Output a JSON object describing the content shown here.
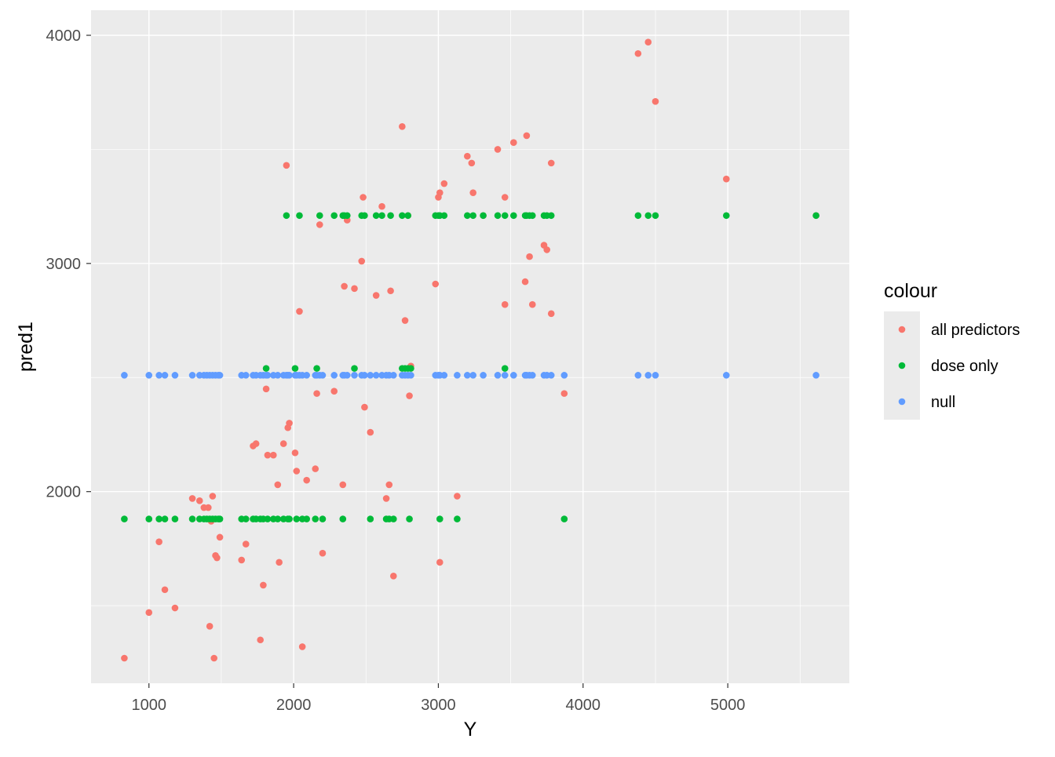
{
  "chart_data": {
    "type": "scatter",
    "xlabel": "Y",
    "ylabel": "pred1",
    "xlim": [
      600,
      5840
    ],
    "ylim": [
      1160,
      4110
    ],
    "x_ticks": [
      1000,
      2000,
      3000,
      4000,
      5000
    ],
    "x_tick_labels": [
      "1000",
      "2000",
      "3000",
      "4000",
      "5000"
    ],
    "y_ticks": [
      2000,
      3000,
      4000
    ],
    "y_tick_labels": [
      "2000",
      "3000",
      "4000"
    ],
    "grid": true,
    "legend": {
      "title": "colour",
      "position": "right",
      "entries": [
        "all predictors",
        "dose only",
        "null"
      ]
    },
    "colors": {
      "all predictors": "#F8766D",
      "dose only": "#00BA38",
      "null": "#619CFF",
      "panel_background": "#EBEBEB",
      "grid": "#FFFFFF"
    },
    "series": [
      {
        "name": "all predictors",
        "points": [
          [
            830,
            1270
          ],
          [
            1000,
            1470
          ],
          [
            1070,
            1780
          ],
          [
            1110,
            1570
          ],
          [
            1180,
            1490
          ],
          [
            1300,
            1970
          ],
          [
            1350,
            1960
          ],
          [
            1380,
            1930
          ],
          [
            1410,
            1930
          ],
          [
            1420,
            1410
          ],
          [
            1430,
            1870
          ],
          [
            1440,
            1980
          ],
          [
            1450,
            1270
          ],
          [
            1460,
            1720
          ],
          [
            1470,
            1710
          ],
          [
            1490,
            1800
          ],
          [
            1640,
            1700
          ],
          [
            1670,
            1770
          ],
          [
            1720,
            2200
          ],
          [
            1740,
            2210
          ],
          [
            1770,
            1350
          ],
          [
            1790,
            1590
          ],
          [
            1810,
            2450
          ],
          [
            1820,
            2160
          ],
          [
            1860,
            2160
          ],
          [
            1890,
            2030
          ],
          [
            1900,
            1690
          ],
          [
            1930,
            2210
          ],
          [
            1950,
            3430
          ],
          [
            1960,
            2280
          ],
          [
            1970,
            2300
          ],
          [
            2010,
            2170
          ],
          [
            2020,
            2090
          ],
          [
            2040,
            2790
          ],
          [
            2060,
            1320
          ],
          [
            2090,
            2050
          ],
          [
            2150,
            2100
          ],
          [
            2160,
            2430
          ],
          [
            2180,
            3170
          ],
          [
            2200,
            1730
          ],
          [
            2280,
            2440
          ],
          [
            2340,
            2030
          ],
          [
            2350,
            2900
          ],
          [
            2370,
            3190
          ],
          [
            2420,
            2890
          ],
          [
            2470,
            3010
          ],
          [
            2480,
            3290
          ],
          [
            2490,
            2370
          ],
          [
            2530,
            2260
          ],
          [
            2570,
            2860
          ],
          [
            2610,
            3250
          ],
          [
            2640,
            1970
          ],
          [
            2660,
            2030
          ],
          [
            2670,
            2880
          ],
          [
            2690,
            1630
          ],
          [
            2750,
            3600
          ],
          [
            2770,
            2750
          ],
          [
            2790,
            3210
          ],
          [
            2800,
            2420
          ],
          [
            2810,
            2550
          ],
          [
            2980,
            2910
          ],
          [
            3000,
            3290
          ],
          [
            3010,
            3310
          ],
          [
            3010,
            1690
          ],
          [
            3040,
            3350
          ],
          [
            3130,
            1980
          ],
          [
            3200,
            3470
          ],
          [
            3230,
            3440
          ],
          [
            3240,
            3310
          ],
          [
            3310,
            3210
          ],
          [
            3410,
            3500
          ],
          [
            3460,
            3290
          ],
          [
            3460,
            2820
          ],
          [
            3520,
            3530
          ],
          [
            3600,
            2920
          ],
          [
            3610,
            3560
          ],
          [
            3630,
            3030
          ],
          [
            3650,
            2820
          ],
          [
            3730,
            3080
          ],
          [
            3750,
            3060
          ],
          [
            3780,
            3440
          ],
          [
            3780,
            2780
          ],
          [
            3870,
            2430
          ],
          [
            4380,
            3920
          ],
          [
            4450,
            3970
          ],
          [
            4500,
            3710
          ],
          [
            4990,
            3370
          ],
          [
            5610,
            3210
          ]
        ]
      },
      {
        "name": "dose only",
        "points": [
          [
            830,
            1880
          ],
          [
            1000,
            1880
          ],
          [
            1070,
            1880
          ],
          [
            1110,
            1880
          ],
          [
            1180,
            1880
          ],
          [
            1300,
            1880
          ],
          [
            1350,
            1880
          ],
          [
            1380,
            1880
          ],
          [
            1400,
            1880
          ],
          [
            1420,
            1880
          ],
          [
            1440,
            1880
          ],
          [
            1460,
            1880
          ],
          [
            1480,
            1880
          ],
          [
            1490,
            1880
          ],
          [
            1640,
            1880
          ],
          [
            1670,
            1880
          ],
          [
            1720,
            1880
          ],
          [
            1740,
            1880
          ],
          [
            1770,
            1880
          ],
          [
            1790,
            1880
          ],
          [
            1820,
            1880
          ],
          [
            1860,
            1880
          ],
          [
            1890,
            1880
          ],
          [
            1930,
            1880
          ],
          [
            1960,
            1880
          ],
          [
            1970,
            1880
          ],
          [
            2020,
            1880
          ],
          [
            2060,
            1880
          ],
          [
            2090,
            1880
          ],
          [
            2150,
            1880
          ],
          [
            2200,
            1880
          ],
          [
            2340,
            1880
          ],
          [
            2530,
            1880
          ],
          [
            2640,
            1880
          ],
          [
            2660,
            1880
          ],
          [
            2690,
            1880
          ],
          [
            2800,
            1880
          ],
          [
            3010,
            1880
          ],
          [
            3130,
            1880
          ],
          [
            3870,
            1880
          ],
          [
            1810,
            2540
          ],
          [
            2010,
            2540
          ],
          [
            2160,
            2540
          ],
          [
            2420,
            2540
          ],
          [
            2750,
            2540
          ],
          [
            2770,
            2540
          ],
          [
            2790,
            2540
          ],
          [
            2810,
            2540
          ],
          [
            3460,
            2540
          ],
          [
            1950,
            3210
          ],
          [
            2040,
            3210
          ],
          [
            2180,
            3210
          ],
          [
            2280,
            3210
          ],
          [
            2340,
            3210
          ],
          [
            2350,
            3210
          ],
          [
            2370,
            3210
          ],
          [
            2470,
            3210
          ],
          [
            2490,
            3210
          ],
          [
            2570,
            3210
          ],
          [
            2610,
            3210
          ],
          [
            2670,
            3210
          ],
          [
            2750,
            3210
          ],
          [
            2790,
            3210
          ],
          [
            2980,
            3210
          ],
          [
            3000,
            3210
          ],
          [
            3010,
            3210
          ],
          [
            3040,
            3210
          ],
          [
            3200,
            3210
          ],
          [
            3240,
            3210
          ],
          [
            3310,
            3210
          ],
          [
            3410,
            3210
          ],
          [
            3460,
            3210
          ],
          [
            3520,
            3210
          ],
          [
            3600,
            3210
          ],
          [
            3610,
            3210
          ],
          [
            3630,
            3210
          ],
          [
            3650,
            3210
          ],
          [
            3730,
            3210
          ],
          [
            3750,
            3210
          ],
          [
            3780,
            3210
          ],
          [
            4380,
            3210
          ],
          [
            4450,
            3210
          ],
          [
            4500,
            3210
          ],
          [
            4990,
            3210
          ],
          [
            5610,
            3210
          ]
        ]
      },
      {
        "name": "null",
        "points": [
          [
            830,
            2510
          ],
          [
            1000,
            2510
          ],
          [
            1070,
            2510
          ],
          [
            1110,
            2510
          ],
          [
            1180,
            2510
          ],
          [
            1300,
            2510
          ],
          [
            1350,
            2510
          ],
          [
            1380,
            2510
          ],
          [
            1400,
            2510
          ],
          [
            1420,
            2510
          ],
          [
            1440,
            2510
          ],
          [
            1460,
            2510
          ],
          [
            1480,
            2510
          ],
          [
            1490,
            2510
          ],
          [
            1640,
            2510
          ],
          [
            1670,
            2510
          ],
          [
            1720,
            2510
          ],
          [
            1740,
            2510
          ],
          [
            1770,
            2510
          ],
          [
            1790,
            2510
          ],
          [
            1810,
            2510
          ],
          [
            1820,
            2510
          ],
          [
            1860,
            2510
          ],
          [
            1890,
            2510
          ],
          [
            1930,
            2510
          ],
          [
            1950,
            2510
          ],
          [
            1960,
            2510
          ],
          [
            1970,
            2510
          ],
          [
            2010,
            2510
          ],
          [
            2020,
            2510
          ],
          [
            2040,
            2510
          ],
          [
            2060,
            2510
          ],
          [
            2090,
            2510
          ],
          [
            2150,
            2510
          ],
          [
            2160,
            2510
          ],
          [
            2180,
            2510
          ],
          [
            2200,
            2510
          ],
          [
            2280,
            2510
          ],
          [
            2340,
            2510
          ],
          [
            2350,
            2510
          ],
          [
            2370,
            2510
          ],
          [
            2420,
            2510
          ],
          [
            2470,
            2510
          ],
          [
            2490,
            2510
          ],
          [
            2530,
            2510
          ],
          [
            2570,
            2510
          ],
          [
            2610,
            2510
          ],
          [
            2640,
            2510
          ],
          [
            2660,
            2510
          ],
          [
            2690,
            2510
          ],
          [
            2750,
            2510
          ],
          [
            2770,
            2510
          ],
          [
            2790,
            2510
          ],
          [
            2810,
            2510
          ],
          [
            2980,
            2510
          ],
          [
            3000,
            2510
          ],
          [
            3010,
            2510
          ],
          [
            3040,
            2510
          ],
          [
            3130,
            2510
          ],
          [
            3200,
            2510
          ],
          [
            3240,
            2510
          ],
          [
            3310,
            2510
          ],
          [
            3410,
            2510
          ],
          [
            3460,
            2510
          ],
          [
            3520,
            2510
          ],
          [
            3600,
            2510
          ],
          [
            3610,
            2510
          ],
          [
            3630,
            2510
          ],
          [
            3650,
            2510
          ],
          [
            3730,
            2510
          ],
          [
            3750,
            2510
          ],
          [
            3780,
            2510
          ],
          [
            3870,
            2510
          ],
          [
            4380,
            2510
          ],
          [
            4450,
            2510
          ],
          [
            4500,
            2510
          ],
          [
            4990,
            2510
          ],
          [
            5610,
            2510
          ]
        ]
      }
    ]
  }
}
